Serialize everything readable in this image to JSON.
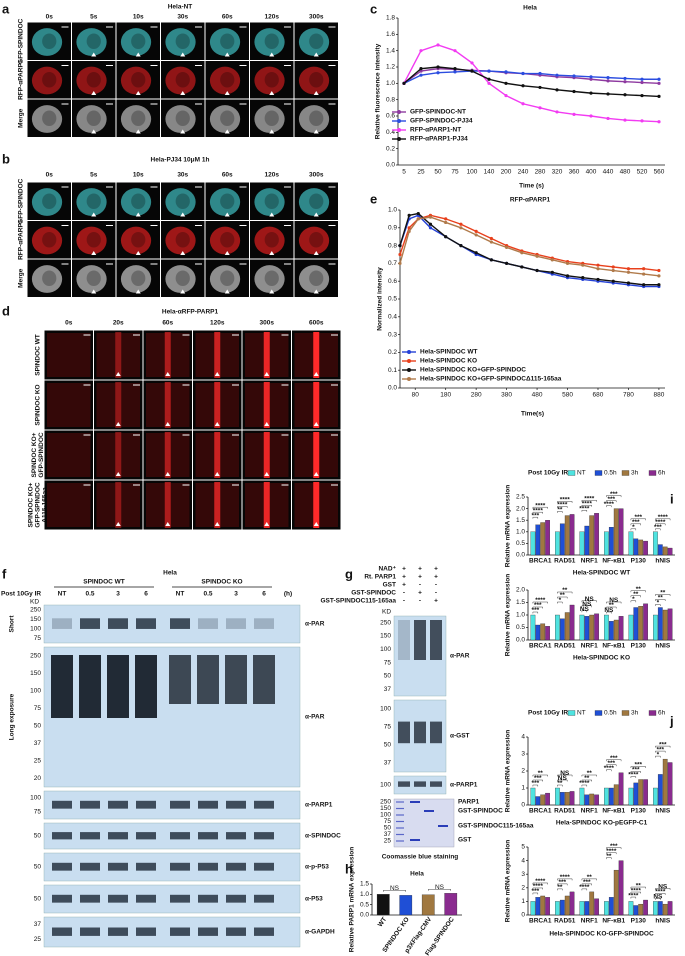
{
  "panel_labels": [
    "a",
    "b",
    "c",
    "d",
    "e",
    "f",
    "g",
    "h",
    "i",
    "j"
  ],
  "microscopy": [
    {
      "title": "Hela-NT",
      "columns": [
        "0s",
        "5s",
        "10s",
        "30s",
        "60s",
        "120s",
        "300s"
      ],
      "rows": [
        "GFP-SPINDOC",
        "RFP-αPARP1",
        "Merge"
      ],
      "row_colors": [
        "#3aa9ab",
        "#b3191a",
        "#a8a8a8"
      ]
    },
    {
      "title": "Hela-PJ34 10μM 1h",
      "columns": [
        "0s",
        "5s",
        "10s",
        "30s",
        "60s",
        "120s",
        "300s"
      ],
      "rows": [
        "GFP-SPINDOC",
        "RFP-αPARP1",
        "Merge"
      ],
      "row_colors": [
        "#3aa9ab",
        "#c41c1c",
        "#b0b0b0"
      ]
    },
    {
      "title": "Hela-αRFP-PARP1",
      "columns": [
        "0s",
        "20s",
        "60s",
        "120s",
        "300s",
        "600s"
      ],
      "rows": [
        [
          "SPINDOC WT"
        ],
        [
          "SPINDOC KO"
        ],
        [
          "SPINDOC KO+",
          "GFP-SPINDOC"
        ],
        [
          "SPINDOC KO+",
          "GFP-SPINDOC",
          "Δ115-165aa"
        ]
      ],
      "row_colors": [
        "#8c0e0e",
        "#8c0e0e",
        "#8c0e0e",
        "#8c0e0e"
      ]
    }
  ],
  "chart_data": [
    {
      "type": "line",
      "title": "Hela",
      "ylabel": "Relative fluorescence intensity",
      "xlabel": "Time (s)",
      "categories": [
        "5",
        "25",
        "50",
        "75",
        "100",
        "140",
        "200",
        "240",
        "280",
        "320",
        "360",
        "400",
        "440",
        "480",
        "520",
        "560"
      ],
      "ylim": [
        0,
        1.8
      ],
      "yticks": [
        {
          "value": 0,
          "label": "0.0"
        },
        0.2,
        0.4,
        0.6,
        0.8,
        {
          "value": 1,
          "label": "1.0"
        },
        1.2,
        1.4,
        1.6,
        1.8
      ],
      "series": [
        {
          "name": "GFP-SPINDOC-NT",
          "color": "#8e3aa0",
          "values": [
            1.0,
            1.15,
            1.18,
            1.17,
            1.16,
            1.15,
            1.13,
            1.12,
            1.1,
            1.08,
            1.07,
            1.05,
            1.03,
            1.02,
            1.01,
            1.0
          ]
        },
        {
          "name": "GFP-SPINDOC-PJ34",
          "color": "#2b4de0",
          "values": [
            1.0,
            1.1,
            1.13,
            1.14,
            1.15,
            1.15,
            1.14,
            1.12,
            1.12,
            1.1,
            1.09,
            1.08,
            1.07,
            1.06,
            1.05,
            1.05
          ]
        },
        {
          "name": "RFP-αPARP1-NT",
          "color": "#f23bf2",
          "values": [
            1.0,
            1.4,
            1.47,
            1.4,
            1.25,
            1.0,
            0.85,
            0.75,
            0.7,
            0.65,
            0.62,
            0.6,
            0.57,
            0.55,
            0.54,
            0.53
          ]
        },
        {
          "name": "RFP-αPARP1-PJ34",
          "color": "#111111",
          "values": [
            1.0,
            1.18,
            1.2,
            1.18,
            1.15,
            1.05,
            1.0,
            0.97,
            0.95,
            0.92,
            0.9,
            0.88,
            0.87,
            0.86,
            0.85,
            0.84
          ]
        }
      ]
    },
    {
      "type": "line",
      "title": "RFP-αPARP1",
      "ylabel": "Normalized intensity",
      "xlabel": "Time(s)",
      "x": [
        30,
        60,
        90,
        130,
        180,
        230,
        280,
        330,
        380,
        430,
        480,
        530,
        580,
        630,
        680,
        730,
        780,
        830,
        880
      ],
      "xlim": [
        30,
        900
      ],
      "xticks": [
        80,
        180,
        280,
        380,
        480,
        580,
        680,
        780,
        880
      ],
      "ylim": [
        0,
        1
      ],
      "yticks": [
        {
          "value": 0,
          "label": "0.0"
        },
        0.1,
        0.2,
        0.3,
        0.4,
        0.5,
        0.6,
        0.7,
        0.8,
        0.9,
        {
          "value": 1,
          "label": "1.0"
        }
      ],
      "series": [
        {
          "name": "Hela-SPINDOC WT",
          "color": "#2541d6",
          "values": [
            0.8,
            0.95,
            0.97,
            0.9,
            0.85,
            0.8,
            0.75,
            0.72,
            0.7,
            0.68,
            0.66,
            0.64,
            0.62,
            0.61,
            0.6,
            0.59,
            0.58,
            0.57,
            0.57
          ]
        },
        {
          "name": "Hela-SPINDOC KO",
          "color": "#e8401c",
          "values": [
            0.75,
            0.9,
            0.95,
            0.97,
            0.95,
            0.92,
            0.88,
            0.84,
            0.8,
            0.77,
            0.75,
            0.73,
            0.71,
            0.7,
            0.69,
            0.68,
            0.67,
            0.67,
            0.66
          ]
        },
        {
          "name": "Hela-SPINDOC KO+GFP-SPINDOC",
          "color": "#111111",
          "values": [
            0.8,
            0.97,
            0.98,
            0.92,
            0.85,
            0.8,
            0.76,
            0.72,
            0.7,
            0.68,
            0.66,
            0.65,
            0.63,
            0.62,
            0.61,
            0.6,
            0.59,
            0.58,
            0.58
          ]
        },
        {
          "name": "Hela-SPINDOC KO+GFP-SPINDOCΔ115-165aa",
          "color": "#b07a4a",
          "values": [
            0.7,
            0.88,
            0.95,
            0.96,
            0.93,
            0.9,
            0.86,
            0.82,
            0.79,
            0.76,
            0.74,
            0.72,
            0.7,
            0.69,
            0.67,
            0.66,
            0.65,
            0.64,
            0.63
          ]
        }
      ]
    },
    {
      "type": "bar",
      "title": "Hela",
      "ylabel": "Relative PARP1 mRNA expression",
      "categories": [
        "WT",
        "SPINDOC KO",
        "p3XFlag-CMV",
        "Flag-SPINDOC"
      ],
      "values": [
        1.0,
        0.95,
        0.98,
        1.05
      ],
      "colors": [
        "#111111",
        "#1f4fd6",
        "#a07840",
        "#8a2b8f"
      ],
      "significance": [
        null,
        "NS",
        null,
        "NS"
      ],
      "ylim": [
        0,
        1.5
      ],
      "yticks": [
        {
          "value": 0,
          "label": "0.0"
        },
        0.5,
        {
          "value": 1,
          "label": "1.0"
        },
        1.5
      ]
    },
    {
      "type": "bar",
      "legend_title": "Post 10Gy IR",
      "subtitle": "Hela-SPINDOC WT",
      "ylabel": "Relative mRNA expression",
      "categories": [
        "BRCA1",
        "RAD51",
        "NRF1",
        "NF-κB1",
        "P130",
        "hNIS"
      ],
      "ylim": [
        0,
        2.5
      ],
      "yticks": [
        {
          "value": 0,
          "label": "0.0"
        },
        0.5,
        {
          "value": 1,
          "label": "1.0"
        },
        1.5,
        {
          "value": 2,
          "label": "2.0"
        },
        2.5
      ],
      "series": [
        {
          "name": "NT",
          "color": "#4fe3e0",
          "values": [
            1,
            1,
            1,
            1,
            1,
            1
          ]
        },
        {
          "name": "0.5h",
          "color": "#1f4fd6",
          "values": [
            1.3,
            1.35,
            1.25,
            1.2,
            0.7,
            0.45
          ],
          "significance": [
            "***",
            "**",
            "****",
            "****",
            "*",
            "***"
          ]
        },
        {
          "name": "3h",
          "color": "#a07840",
          "values": [
            1.4,
            1.7,
            1.7,
            2.0,
            0.65,
            0.35
          ],
          "significance": [
            "****",
            "****",
            "****",
            "***",
            "***",
            "****"
          ]
        },
        {
          "name": "6h",
          "color": "#8a2b8f",
          "values": [
            1.5,
            1.75,
            1.8,
            2.0,
            0.6,
            0.3
          ],
          "significance": [
            "****",
            "****",
            "****",
            "***",
            "***",
            "****"
          ]
        }
      ]
    },
    {
      "type": "bar",
      "subtitle": "Hela-SPINDOC KO",
      "ylabel": "Relative mRNA expression",
      "categories": [
        "BRCA1",
        "RAD51",
        "NRF1",
        "NF-κB1",
        "P130",
        "hNIS"
      ],
      "ylim": [
        0,
        2
      ],
      "yticks": [
        {
          "value": 0,
          "label": "0.0"
        },
        0.5,
        {
          "value": 1,
          "label": "1.0"
        },
        1.5,
        {
          "value": 2,
          "label": "2.0"
        }
      ],
      "series": [
        {
          "color": "#4fe3e0",
          "values": [
            1,
            1,
            1,
            1,
            1,
            1
          ]
        },
        {
          "color": "#1f4fd6",
          "values": [
            0.6,
            0.85,
            0.95,
            0.75,
            1.3,
            1.3
          ],
          "significance": [
            "***",
            "*",
            "NS",
            "NS",
            "*",
            "*"
          ]
        },
        {
          "color": "#a07840",
          "values": [
            0.65,
            1.1,
            1.0,
            0.8,
            1.35,
            1.2
          ],
          "significance": [
            "***",
            "**",
            "NS",
            "**",
            "**",
            "**"
          ]
        },
        {
          "color": "#8a2b8f",
          "values": [
            0.55,
            1.4,
            1.05,
            0.95,
            1.45,
            1.25
          ],
          "significance": [
            "****",
            "**",
            "NS",
            "NS",
            "**",
            "**"
          ]
        }
      ]
    },
    {
      "type": "bar",
      "legend_title": "Post 10Gy IR",
      "subtitle": "Hela-SPINDOC KO-pEGFP-C1",
      "ylabel": "Relative mRNA expression",
      "categories": [
        "BRCA1",
        "RAD51",
        "NRF1",
        "NF-κB1",
        "P130",
        "hNIS"
      ],
      "ylim": [
        0,
        4
      ],
      "yticks": [
        0,
        1,
        2,
        3,
        4
      ],
      "series": [
        {
          "name": "NT",
          "color": "#4fe3e0",
          "values": [
            1,
            1,
            1,
            1,
            1,
            1
          ]
        },
        {
          "name": "0.5h",
          "color": "#1f4fd6",
          "values": [
            0.5,
            0.75,
            0.6,
            1.0,
            1.3,
            1.8
          ],
          "significance": [
            "***",
            "**",
            "****",
            "****",
            "****",
            "*"
          ]
        },
        {
          "name": "3h",
          "color": "#a07840",
          "values": [
            0.6,
            0.75,
            0.65,
            1.2,
            1.5,
            2.7
          ],
          "significance": [
            "***",
            "NS",
            "**",
            "***",
            "***",
            "***"
          ]
        },
        {
          "name": "6h",
          "color": "#8a2b8f",
          "values": [
            0.7,
            0.8,
            0.6,
            1.9,
            1.5,
            2.5
          ],
          "significance": [
            "**",
            "NS",
            "**",
            "***",
            "***",
            "***"
          ]
        }
      ]
    },
    {
      "type": "bar",
      "subtitle": "Hela-SPINDOC KO-GFP-SPINDOC",
      "ylabel": "Relative mRNA expression",
      "categories": [
        "BRCA1",
        "RAD51",
        "NRF1",
        "NF-κB1",
        "P130",
        "hNIS"
      ],
      "ylim": [
        0,
        5
      ],
      "yticks": [
        0,
        1,
        2,
        3,
        4,
        5
      ],
      "series": [
        {
          "color": "#4fe3e0",
          "values": [
            1,
            1,
            1,
            1,
            1,
            1
          ]
        },
        {
          "color": "#1f4fd6",
          "values": [
            1.3,
            1.1,
            1.0,
            1.3,
            0.7,
            1.0
          ],
          "significance": [
            "***",
            "**",
            "****",
            "**",
            "****",
            "NS"
          ]
        },
        {
          "color": "#a07840",
          "values": [
            1.4,
            1.4,
            1.7,
            3.3,
            0.8,
            0.8
          ],
          "significance": [
            "****",
            "***",
            "***",
            "****",
            "****",
            "****"
          ]
        },
        {
          "color": "#8a2b8f",
          "values": [
            1.3,
            1.7,
            1.2,
            4.0,
            1.1,
            1.0
          ],
          "significance": [
            "****",
            "****",
            "**",
            "***",
            "**",
            "NS"
          ]
        }
      ]
    }
  ],
  "blot_f": {
    "title": "Hela",
    "groups": [
      "SPINDOC WT",
      "SPINDOC KO"
    ],
    "treatment_label": "Post 10Gy IR",
    "lanes": [
      "NT",
      "0.5",
      "3",
      "6",
      "NT",
      "0.5",
      "3",
      "6"
    ],
    "unit": "(h)",
    "side_labels": [
      "Short",
      "Long exposure"
    ],
    "kd": "KD",
    "panels": [
      {
        "label": "α-PAR",
        "markers": [
          250,
          150,
          100,
          75
        ]
      },
      {
        "label": "α-PAR",
        "markers": [
          250,
          150,
          100,
          75,
          50,
          37,
          25,
          20
        ]
      },
      {
        "label": "α-PARP1",
        "markers": [
          100,
          75
        ]
      },
      {
        "label": "α-SPINDOC",
        "markers": [
          50
        ]
      },
      {
        "label": "α-p-P53",
        "markers": [
          50
        ]
      },
      {
        "label": "α-P53",
        "markers": [
          50
        ]
      },
      {
        "label": "α-GAPDH",
        "markers": [
          37,
          25
        ]
      }
    ]
  },
  "blot_g": {
    "conditions": [
      {
        "name": "NAD⁺",
        "marks": [
          "+",
          "+",
          "+"
        ]
      },
      {
        "name": "Rt. PARP1",
        "marks": [
          "+",
          "+",
          "+"
        ]
      },
      {
        "name": "GST",
        "marks": [
          "+",
          "-",
          "-"
        ]
      },
      {
        "name": "GST-SPINDOC",
        "marks": [
          "-",
          "+",
          "-"
        ]
      },
      {
        "name": "GST-SPINDOC115-165aa",
        "marks": [
          "-",
          "-",
          "+"
        ]
      }
    ],
    "kd": "KD",
    "panels": [
      {
        "label": "α-PAR",
        "markers": [
          250,
          150,
          100,
          75,
          50,
          37
        ]
      },
      {
        "label": "α-GST",
        "markers": [
          100,
          75,
          50,
          37
        ]
      },
      {
        "label": "α-PARP1",
        "markers": [
          100
        ]
      }
    ],
    "gel": {
      "markers": [
        250,
        150,
        100,
        75,
        50,
        37,
        25
      ],
      "bands": [
        "PARP1",
        "GST-SPINDOC",
        "GST-SPINDOC115-165aa",
        "GST"
      ],
      "caption": "Coomassie blue staining"
    }
  }
}
